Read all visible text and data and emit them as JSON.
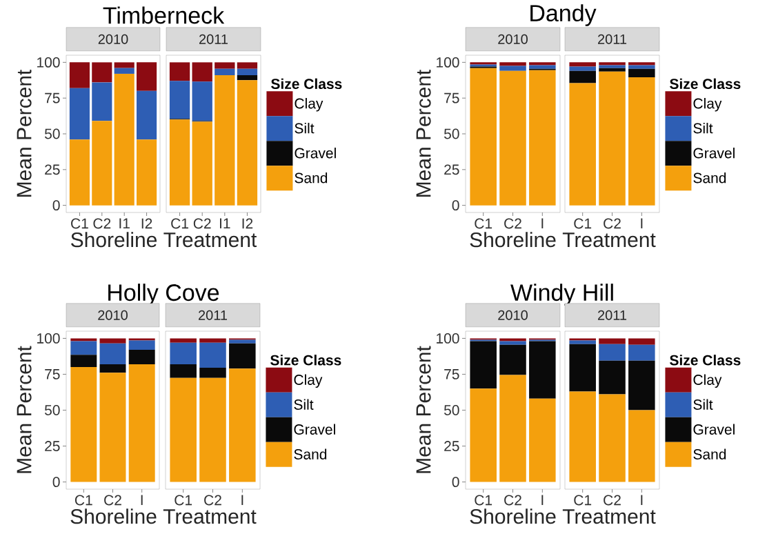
{
  "chart_data": [
    {
      "type": "bar",
      "stacked": true,
      "title": "Timberneck",
      "subtitle": "2010",
      "ylabel": "Mean Percent",
      "xlabel": "Shoreline Treatment",
      "categories": [
        "C1",
        "C2",
        "I1",
        "I2"
      ],
      "ylim": [
        -5,
        105
      ],
      "yticks": [
        0,
        25,
        50,
        75,
        100
      ],
      "series": [
        {
          "color": "#f4a00d",
          "values": [
            46,
            59,
            92,
            46
          ]
        },
        {
          "color": "#0a0a0a",
          "values": [
            0,
            0,
            0,
            0
          ]
        },
        {
          "color": "#2e5eb4",
          "values": [
            36,
            27,
            4,
            34
          ]
        },
        {
          "color": "#8c0b12",
          "values": [
            18,
            14,
            4,
            20
          ]
        }
      ]
    },
    {
      "type": "bar",
      "stacked": true,
      "subtitle": "2011",
      "categories": [
        "C1",
        "C2",
        "I1",
        "I2"
      ],
      "ylim": [
        -5,
        105
      ],
      "yticks": [
        0,
        25,
        50,
        75,
        100
      ],
      "tick_labels": "x",
      "legend": "right",
      "legend_title": "Size Class",
      "series": [
        {
          "name": "Sand",
          "color": "#f4a00d",
          "values": [
            60,
            58.5,
            91,
            87.5
          ]
        },
        {
          "name": "Gravel",
          "color": "#0a0a0a",
          "values": [
            0.5,
            0.5,
            0,
            3.5
          ]
        },
        {
          "name": "Silt",
          "color": "#2e5eb4",
          "values": [
            26.5,
            27.5,
            4.5,
            4.5
          ]
        },
        {
          "name": "Clay",
          "color": "#8c0b12",
          "values": [
            13,
            13.5,
            4.5,
            4.5
          ]
        }
      ]
    },
    {
      "type": "bar",
      "stacked": true,
      "title": "Dandy",
      "subtitle": "2010",
      "ylabel": "Mean Percent",
      "xlabel": "Shoreline Treatment",
      "categories": [
        "C1",
        "C2",
        "I"
      ],
      "ylim": [
        -5,
        105
      ],
      "yticks": [
        0,
        25,
        50,
        75,
        100
      ],
      "series": [
        {
          "color": "#f4a00d",
          "values": [
            96,
            94,
            94.5
          ]
        },
        {
          "color": "#0a0a0a",
          "values": [
            1,
            0,
            1
          ]
        },
        {
          "color": "#2e5eb4",
          "values": [
            1.5,
            3.5,
            2.5
          ]
        },
        {
          "color": "#8c0b12",
          "values": [
            1.5,
            2.5,
            2
          ]
        }
      ]
    },
    {
      "type": "bar",
      "stacked": true,
      "subtitle": "2011",
      "categories": [
        "C1",
        "C2",
        "I"
      ],
      "ylim": [
        -5,
        105
      ],
      "yticks": [
        0,
        25,
        50,
        75,
        100
      ],
      "tick_labels": "x",
      "legend": "right",
      "legend_title": "Size Class",
      "series": [
        {
          "name": "Sand",
          "color": "#f4a00d",
          "values": [
            85.5,
            93.5,
            89.5
          ]
        },
        {
          "name": "Gravel",
          "color": "#0a0a0a",
          "values": [
            8.5,
            2.5,
            6
          ]
        },
        {
          "name": "Silt",
          "color": "#2e5eb4",
          "values": [
            3,
            2,
            2.5
          ]
        },
        {
          "name": "Clay",
          "color": "#8c0b12",
          "values": [
            3,
            2,
            2
          ]
        }
      ]
    },
    {
      "type": "bar",
      "stacked": true,
      "title": "Holly Cove",
      "subtitle": "2010",
      "ylabel": "Mean Percent",
      "xlabel": "Shoreline Treatment",
      "categories": [
        "C1",
        "C2",
        "I"
      ],
      "ylim": [
        -5,
        105
      ],
      "yticks": [
        0,
        25,
        50,
        75,
        100
      ],
      "series": [
        {
          "color": "#f4a00d",
          "values": [
            80,
            76,
            82
          ]
        },
        {
          "color": "#0a0a0a",
          "values": [
            8.5,
            6,
            10
          ]
        },
        {
          "color": "#2e5eb4",
          "values": [
            9.5,
            14.5,
            6.5
          ]
        },
        {
          "color": "#8c0b12",
          "values": [
            2,
            3.5,
            1.5
          ]
        }
      ]
    },
    {
      "type": "bar",
      "stacked": true,
      "subtitle": "2011",
      "categories": [
        "C1",
        "C2",
        "I"
      ],
      "ylim": [
        -5,
        105
      ],
      "yticks": [
        0,
        25,
        50,
        75,
        100
      ],
      "tick_labels": "x",
      "legend": "right",
      "legend_title": "Size Class",
      "series": [
        {
          "name": "Sand",
          "color": "#f4a00d",
          "values": [
            72.5,
            72.5,
            79
          ]
        },
        {
          "name": "Gravel",
          "color": "#0a0a0a",
          "values": [
            9.5,
            7,
            17.5
          ]
        },
        {
          "name": "Silt",
          "color": "#2e5eb4",
          "values": [
            15,
            17.5,
            2.5
          ]
        },
        {
          "name": "Clay",
          "color": "#8c0b12",
          "values": [
            3,
            3,
            1
          ]
        }
      ]
    },
    {
      "type": "bar",
      "stacked": true,
      "title": "Windy Hill",
      "subtitle": "2010",
      "ylabel": "Mean Percent",
      "xlabel": "Shoreline Treatment",
      "categories": [
        "C1",
        "C2",
        "I"
      ],
      "ylim": [
        -5,
        105
      ],
      "yticks": [
        0,
        25,
        50,
        75,
        100
      ],
      "series": [
        {
          "color": "#f4a00d",
          "values": [
            65,
            74.5,
            58
          ]
        },
        {
          "color": "#0a0a0a",
          "values": [
            33,
            21,
            40
          ]
        },
        {
          "color": "#2e5eb4",
          "values": [
            1,
            2.5,
            1
          ]
        },
        {
          "color": "#8c0b12",
          "values": [
            1,
            2,
            1
          ]
        }
      ]
    },
    {
      "type": "bar",
      "stacked": true,
      "subtitle": "2011",
      "categories": [
        "C1",
        "C2",
        "I"
      ],
      "ylim": [
        -5,
        105
      ],
      "yticks": [
        0,
        25,
        50,
        75,
        100
      ],
      "tick_labels": "x",
      "legend": "right",
      "legend_title": "Size Class",
      "series": [
        {
          "name": "Sand",
          "color": "#f4a00d",
          "values": [
            63,
            61,
            50
          ]
        },
        {
          "name": "Gravel",
          "color": "#0a0a0a",
          "values": [
            33,
            23.5,
            34.5
          ]
        },
        {
          "name": "Silt",
          "color": "#2e5eb4",
          "values": [
            2.5,
            11.5,
            11
          ]
        },
        {
          "name": "Clay",
          "color": "#8c0b12",
          "values": [
            1.5,
            4,
            4.5
          ]
        }
      ]
    }
  ]
}
